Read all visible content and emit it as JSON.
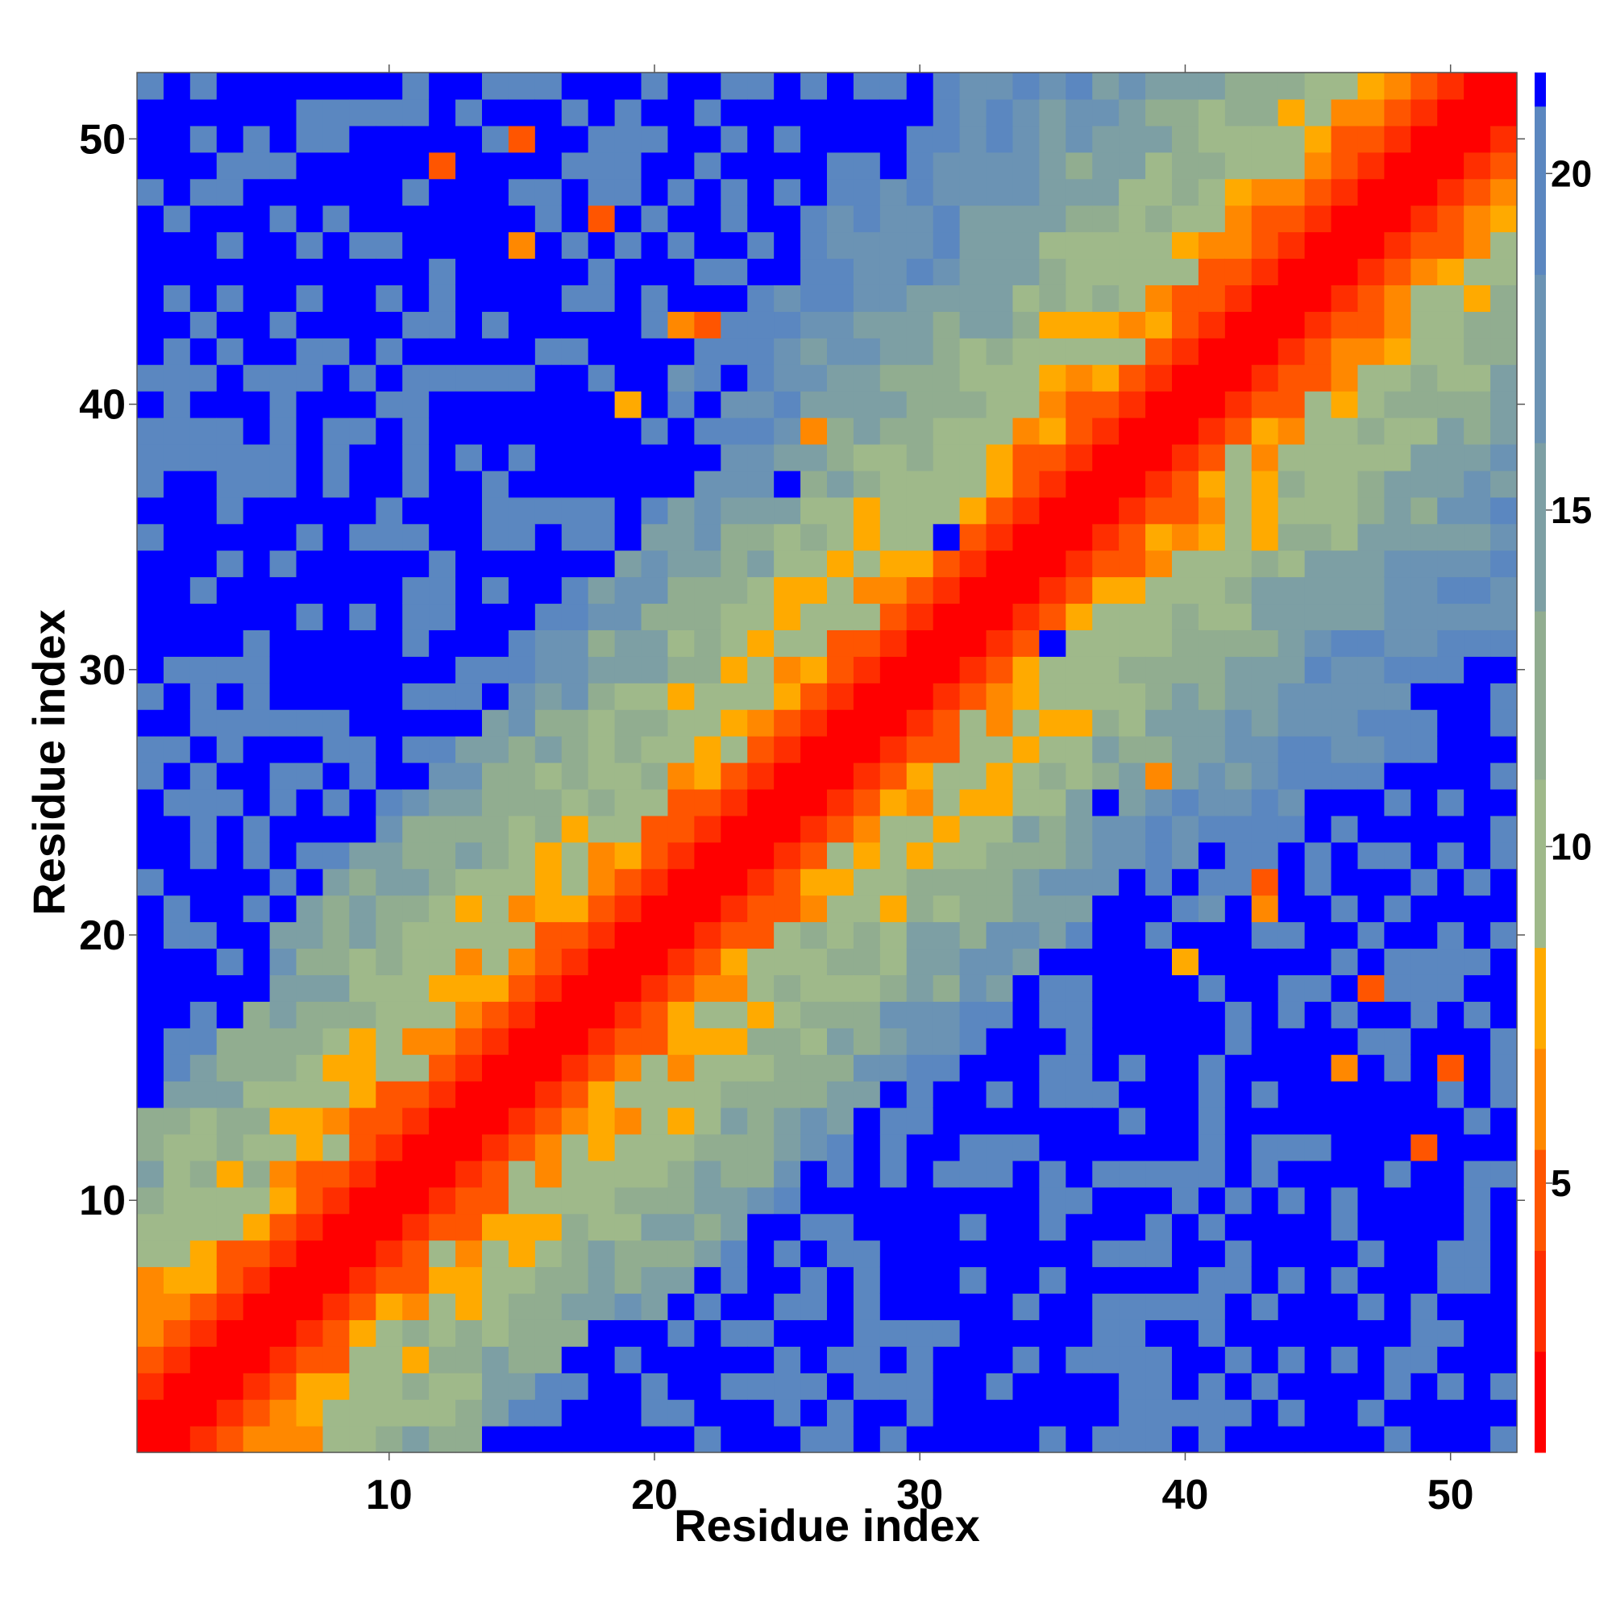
{
  "chart_data": {
    "type": "heatmap",
    "title": "",
    "xlabel": "Residue index",
    "ylabel": "Residue index",
    "n_residues": 52,
    "xlim": [
      0.5,
      52.5
    ],
    "ylim": [
      0.5,
      52.5
    ],
    "x_ticks": [
      10,
      20,
      30,
      40,
      50
    ],
    "y_ticks": [
      10,
      20,
      30,
      40,
      50
    ],
    "grid": false,
    "matrix_description": "symmetric pairwise residue distance map, values shown binned by colour",
    "colorbar": {
      "position": "right",
      "range": [
        1,
        21.5
      ],
      "ticks": [
        5,
        10,
        15,
        20
      ],
      "bins": [
        {
          "from": 1.0,
          "to": 2.5,
          "color": "#ff0000"
        },
        {
          "from": 2.5,
          "to": 4.0,
          "color": "#ff2e00"
        },
        {
          "from": 4.0,
          "to": 5.5,
          "color": "#ff5500"
        },
        {
          "from": 5.5,
          "to": 7.0,
          "color": "#ff8800"
        },
        {
          "from": 7.0,
          "to": 8.5,
          "color": "#ffaa00"
        },
        {
          "from": 8.5,
          "to": 11.0,
          "color": "#9fb98a"
        },
        {
          "from": 11.0,
          "to": 13.5,
          "color": "#91ad90"
        },
        {
          "from": 13.5,
          "to": 16.0,
          "color": "#7d9fa4"
        },
        {
          "from": 16.0,
          "to": 18.5,
          "color": "#6b93b4"
        },
        {
          "from": 18.5,
          "to": 21.0,
          "color": "#5b87c0"
        },
        {
          "from": 21.0,
          "to": 21.5,
          "color": "#0000ff"
        }
      ]
    },
    "diagonal_band": {
      "description": "distance grows with sequence separation |i-j|",
      "by_separation": [
        {
          "sep": 0,
          "value": 1.5
        },
        {
          "sep": 1,
          "value": 2.0
        },
        {
          "sep": 2,
          "value": 3.0
        },
        {
          "sep": 3,
          "value": 5.0
        },
        {
          "sep": 4,
          "value": 6.5
        },
        {
          "sep": 5,
          "value": 8.0
        },
        {
          "sep": 6,
          "value": 9.0
        },
        {
          "sep": 8,
          "value": 10.0
        },
        {
          "sep": 10,
          "value": 12.0
        },
        {
          "sep": 13,
          "value": 15.0
        },
        {
          "sep": 16,
          "value": 18.0
        },
        {
          "sep": 19,
          "value": 20.0
        },
        {
          "sep": 22,
          "value": 21.5
        }
      ]
    },
    "far_region": {
      "description": "lower-left / lower-right wedge: value 21.5 beyond these separations",
      "blue_beyond_separation_rows": [
        {
          "row_range": [
            1,
            5
          ],
          "sep": 12
        },
        {
          "row_range": [
            6,
            14
          ],
          "sep": 14
        },
        {
          "row_range": [
            15,
            25
          ],
          "sep": 15
        },
        {
          "row_range": [
            26,
            35
          ],
          "sep": 18
        }
      ]
    },
    "notable_contacts": [
      {
        "i": 15,
        "j": 46,
        "value": 5.5
      },
      {
        "i": 15,
        "j": 50,
        "value": 5.0
      },
      {
        "i": 12,
        "j": 49,
        "value": 4.5
      },
      {
        "i": 18,
        "j": 47,
        "value": 5.0
      },
      {
        "i": 21,
        "j": 43,
        "value": 5.5
      },
      {
        "i": 22,
        "j": 43,
        "value": 5.0
      },
      {
        "i": 26,
        "j": 39,
        "value": 5.5
      },
      {
        "i": 19,
        "j": 40,
        "value": 7.5
      },
      {
        "i": 33,
        "j": 37,
        "value": 7.5
      },
      {
        "i": 43,
        "j": 25,
        "value": 5.5
      },
      {
        "i": 40,
        "j": 25,
        "value": 5.5
      },
      {
        "i": 46,
        "j": 20,
        "value": 5.5
      },
      {
        "i": 49,
        "j": 15,
        "value": 5.0
      },
      {
        "i": 50,
        "j": 11,
        "value": 5.0
      },
      {
        "i": 37,
        "j": 25,
        "value": 21.5
      },
      {
        "i": 35,
        "j": 31,
        "value": 21.5
      },
      {
        "i": 37,
        "j": 31,
        "value": 21.5
      },
      {
        "i": 25,
        "j": 37,
        "value": 21.5
      },
      {
        "i": 31,
        "j": 35,
        "value": 21.5
      },
      {
        "i": 44,
        "j": 21,
        "value": 21.5
      },
      {
        "i": 44,
        "j": 9,
        "value": 21.5
      },
      {
        "i": 42,
        "j": 12,
        "value": 21.5
      },
      {
        "i": 22,
        "j": 44,
        "value": 21.5
      },
      {
        "i": 14,
        "j": 51,
        "value": 21.5
      },
      {
        "i": 9,
        "j": 44,
        "value": 21.5
      }
    ]
  }
}
